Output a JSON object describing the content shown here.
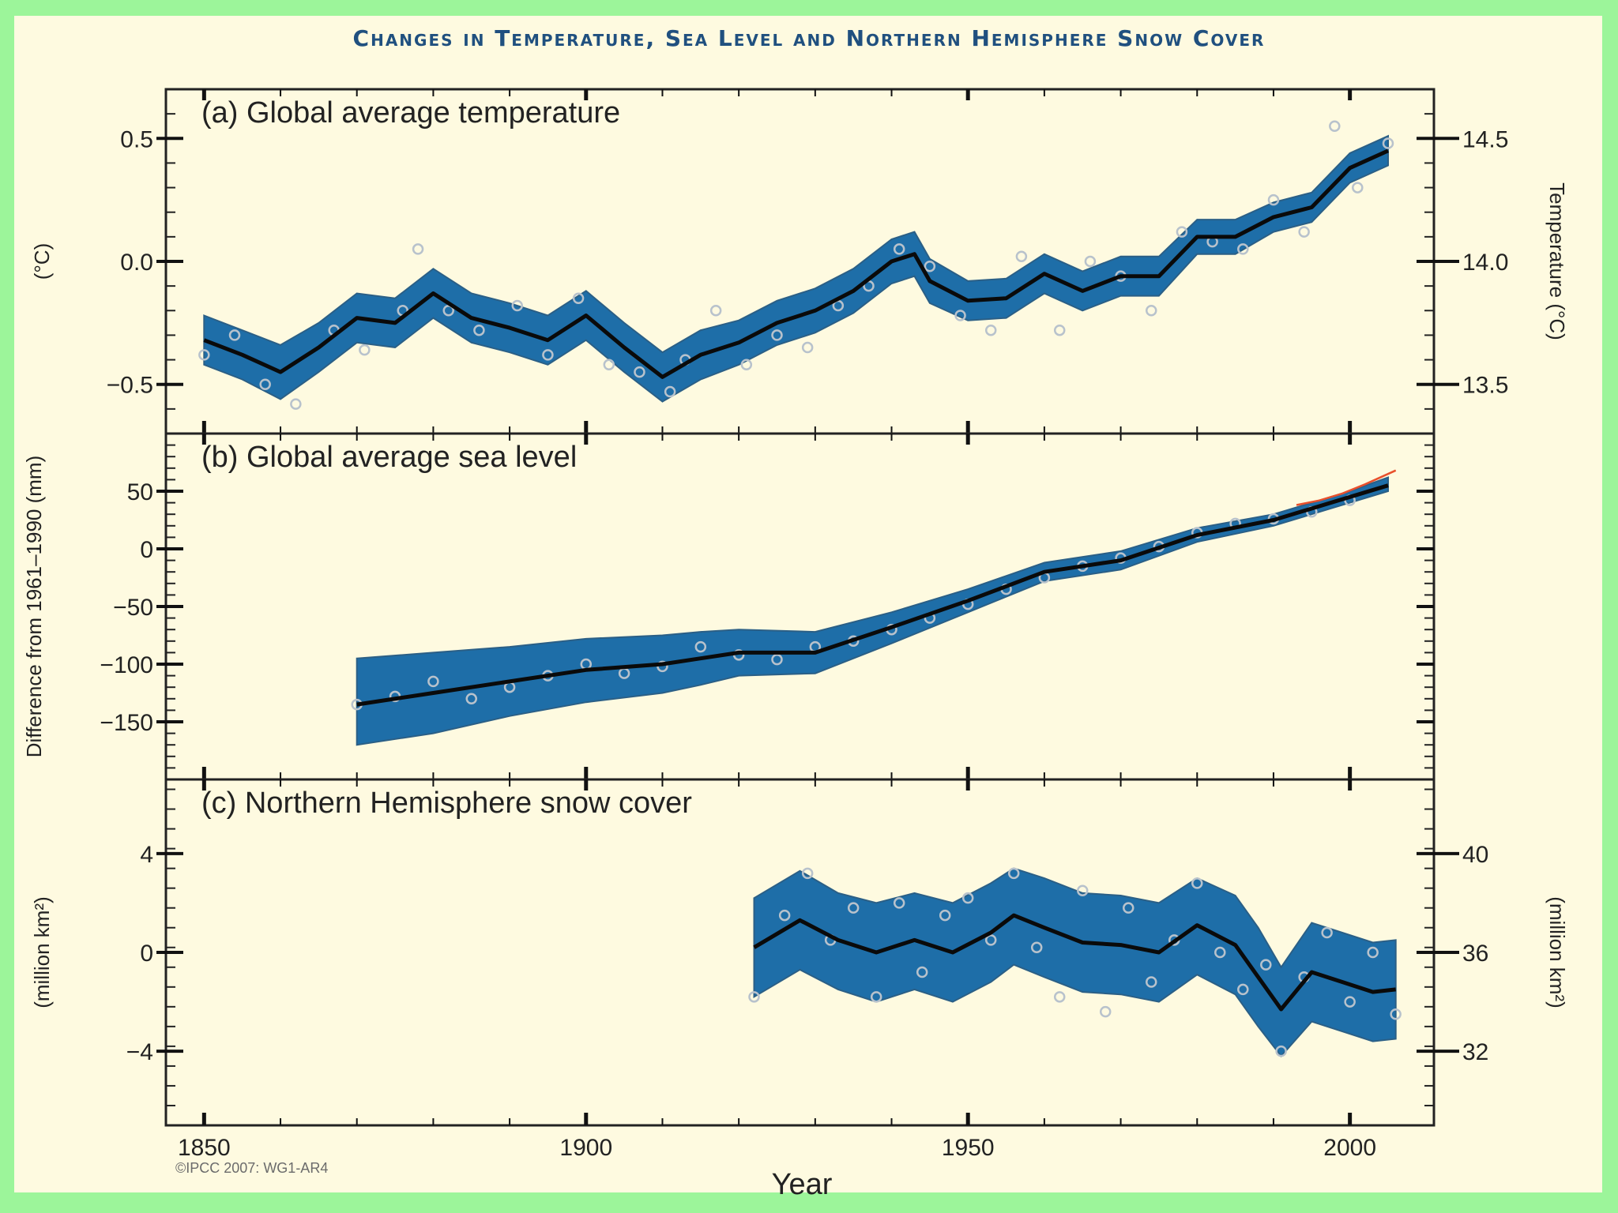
{
  "title": "Changes in Temperature, Sea Level and Northern Hemisphere Snow Cover",
  "credit": "©IPCC 2007: WG1-AR4",
  "colors": {
    "band": "#1e6ea8",
    "line": "#0a0a0a",
    "points": "#b8c2cc",
    "panel_bg": "#fefae0",
    "outer_bg": "#9cf59a",
    "title": "#20507f",
    "satellite": "#e8502c"
  },
  "chart_data": [
    {
      "type": "line",
      "title": "(a) Global average temperature",
      "xlabel": "Year",
      "ylabel": "(°C)",
      "ylabel_right": "Temperature (°C)",
      "xlim": [
        1845,
        2011
      ],
      "ylim": [
        -0.7,
        0.7
      ],
      "yticks": [
        0.5,
        0.0,
        -0.5
      ],
      "ytick_labels": [
        "0.5",
        "0.0",
        "−0.5"
      ],
      "yticks_right": [
        14.5,
        14.0,
        13.5
      ],
      "yticks_right_labels": [
        "14.5",
        "14.0",
        "13.5"
      ],
      "series": [
        {
          "name": "decadal smoothed",
          "x": [
            1850,
            1855,
            1860,
            1865,
            1870,
            1875,
            1880,
            1885,
            1890,
            1895,
            1900,
            1905,
            1910,
            1915,
            1920,
            1925,
            1930,
            1935,
            1940,
            1943,
            1945,
            1950,
            1955,
            1960,
            1965,
            1970,
            1975,
            1980,
            1985,
            1990,
            1995,
            2000,
            2005
          ],
          "values": [
            -0.32,
            -0.38,
            -0.45,
            -0.35,
            -0.23,
            -0.25,
            -0.13,
            -0.23,
            -0.27,
            -0.32,
            -0.22,
            -0.35,
            -0.47,
            -0.38,
            -0.33,
            -0.25,
            -0.2,
            -0.12,
            0.0,
            0.03,
            -0.08,
            -0.16,
            -0.15,
            -0.05,
            -0.12,
            -0.06,
            -0.06,
            0.1,
            0.1,
            0.18,
            0.22,
            0.38,
            0.45
          ]
        },
        {
          "name": "uncertainty",
          "x": [
            1850,
            1855,
            1860,
            1865,
            1870,
            1875,
            1880,
            1885,
            1890,
            1895,
            1900,
            1905,
            1910,
            1915,
            1920,
            1925,
            1930,
            1935,
            1940,
            1943,
            1945,
            1950,
            1955,
            1960,
            1965,
            1970,
            1975,
            1980,
            1985,
            1990,
            1995,
            2000,
            2005
          ],
          "upper": [
            -0.22,
            -0.28,
            -0.34,
            -0.25,
            -0.13,
            -0.15,
            -0.03,
            -0.13,
            -0.17,
            -0.22,
            -0.12,
            -0.25,
            -0.37,
            -0.28,
            -0.24,
            -0.16,
            -0.11,
            -0.03,
            0.09,
            0.12,
            0.01,
            -0.08,
            -0.07,
            0.03,
            -0.04,
            0.02,
            0.02,
            0.17,
            0.17,
            0.24,
            0.28,
            0.44,
            0.51
          ],
          "lower": [
            -0.42,
            -0.48,
            -0.56,
            -0.45,
            -0.33,
            -0.35,
            -0.23,
            -0.33,
            -0.37,
            -0.42,
            -0.32,
            -0.45,
            -0.57,
            -0.48,
            -0.42,
            -0.34,
            -0.29,
            -0.21,
            -0.09,
            -0.06,
            -0.17,
            -0.24,
            -0.23,
            -0.13,
            -0.2,
            -0.14,
            -0.14,
            0.03,
            0.03,
            0.12,
            0.16,
            0.32,
            0.39
          ]
        },
        {
          "name": "annual values",
          "x": [
            1850,
            1854,
            1858,
            1862,
            1867,
            1871,
            1876,
            1878,
            1882,
            1886,
            1891,
            1895,
            1899,
            1903,
            1907,
            1911,
            1913,
            1917,
            1921,
            1925,
            1929,
            1933,
            1937,
            1941,
            1945,
            1949,
            1953,
            1957,
            1962,
            1966,
            1970,
            1974,
            1978,
            1982,
            1986,
            1990,
            1994,
            1998,
            2001,
            2005
          ],
          "values": [
            -0.38,
            -0.3,
            -0.5,
            -0.58,
            -0.28,
            -0.36,
            -0.2,
            0.05,
            -0.2,
            -0.28,
            -0.18,
            -0.38,
            -0.15,
            -0.42,
            -0.45,
            -0.53,
            -0.4,
            -0.2,
            -0.42,
            -0.3,
            -0.35,
            -0.18,
            -0.1,
            0.05,
            -0.02,
            -0.22,
            -0.28,
            0.02,
            -0.28,
            0.0,
            -0.06,
            -0.2,
            0.12,
            0.08,
            0.05,
            0.25,
            0.12,
            0.55,
            0.3,
            0.48
          ]
        }
      ]
    },
    {
      "type": "line",
      "title": "(b) Global average sea level",
      "ylabel": "Difference from 1961–1990 (mm)",
      "xlim": [
        1845,
        2011
      ],
      "ylim": [
        -200,
        100
      ],
      "yticks": [
        50,
        0,
        -50,
        -100,
        -150
      ],
      "ytick_labels": [
        "50",
        "0",
        "−50",
        "−100",
        "−150"
      ],
      "series": [
        {
          "name": "decadal smoothed",
          "x": [
            1870,
            1880,
            1890,
            1900,
            1910,
            1915,
            1920,
            1930,
            1940,
            1950,
            1960,
            1970,
            1980,
            1990,
            2000,
            2005
          ],
          "values": [
            -135,
            -125,
            -115,
            -105,
            -100,
            -95,
            -90,
            -90,
            -68,
            -45,
            -20,
            -10,
            12,
            25,
            45,
            55
          ]
        },
        {
          "name": "uncertainty",
          "x": [
            1870,
            1880,
            1890,
            1900,
            1910,
            1915,
            1920,
            1930,
            1940,
            1950,
            1960,
            1970,
            1980,
            1990,
            2000,
            2005
          ],
          "upper": [
            -95,
            -90,
            -85,
            -78,
            -75,
            -72,
            -70,
            -72,
            -55,
            -35,
            -12,
            -2,
            18,
            30,
            50,
            62
          ],
          "lower": [
            -170,
            -160,
            -145,
            -133,
            -125,
            -118,
            -110,
            -108,
            -82,
            -55,
            -28,
            -18,
            6,
            20,
            40,
            50
          ]
        },
        {
          "name": "tide gauge values",
          "x": [
            1870,
            1875,
            1880,
            1885,
            1890,
            1895,
            1900,
            1905,
            1910,
            1915,
            1920,
            1925,
            1930,
            1935,
            1940,
            1945,
            1950,
            1955,
            1960,
            1965,
            1970,
            1975,
            1980,
            1985,
            1990,
            1995,
            2000
          ],
          "values": [
            -135,
            -128,
            -115,
            -130,
            -120,
            -110,
            -100,
            -108,
            -102,
            -85,
            -92,
            -96,
            -85,
            -80,
            -70,
            -60,
            -48,
            -35,
            -25,
            -15,
            -8,
            2,
            14,
            22,
            26,
            32,
            42
          ]
        },
        {
          "name": "satellite altimetry",
          "x": [
            1993,
            1996,
            1999,
            2002,
            2006
          ],
          "values": [
            38,
            42,
            48,
            56,
            68
          ]
        }
      ]
    },
    {
      "type": "line",
      "title": "(c) Northern Hemisphere snow cover",
      "ylabel": "(million km²)",
      "ylabel_right": "(million km²)",
      "xlim": [
        1845,
        2011
      ],
      "ylim": [
        -7,
        7
      ],
      "yticks": [
        4,
        0,
        -4
      ],
      "ytick_labels": [
        "4",
        "0",
        "−4"
      ],
      "yticks_right": [
        40,
        36,
        32
      ],
      "yticks_right_labels": [
        "40",
        "36",
        "32"
      ],
      "xticks": [
        1850,
        1900,
        1950,
        2000
      ],
      "xtick_labels": [
        "1850",
        "1900",
        "1950",
        "2000"
      ],
      "series": [
        {
          "name": "decadal smoothed",
          "x": [
            1922,
            1928,
            1933,
            1938,
            1943,
            1948,
            1953,
            1956,
            1960,
            1965,
            1970,
            1975,
            1980,
            1985,
            1988,
            1991,
            1995,
            1999,
            2003,
            2006
          ],
          "values": [
            0.2,
            1.3,
            0.5,
            0.0,
            0.5,
            0.0,
            0.8,
            1.5,
            1.0,
            0.4,
            0.3,
            0.0,
            1.1,
            0.3,
            -1.0,
            -2.3,
            -0.8,
            -1.2,
            -1.6,
            -1.5
          ]
        },
        {
          "name": "uncertainty",
          "x": [
            1922,
            1928,
            1933,
            1938,
            1943,
            1948,
            1953,
            1956,
            1960,
            1965,
            1970,
            1975,
            1980,
            1985,
            1988,
            1991,
            1995,
            1999,
            2003,
            2006
          ],
          "upper": [
            2.2,
            3.3,
            2.4,
            2.0,
            2.4,
            2.0,
            2.8,
            3.4,
            3.0,
            2.4,
            2.3,
            2.0,
            3.0,
            2.3,
            1.0,
            -0.6,
            1.2,
            0.8,
            0.4,
            0.5
          ],
          "lower": [
            -1.8,
            -0.7,
            -1.5,
            -2.0,
            -1.5,
            -2.0,
            -1.2,
            -0.5,
            -1.0,
            -1.6,
            -1.7,
            -2.0,
            -0.9,
            -1.7,
            -3.0,
            -4.2,
            -2.8,
            -3.2,
            -3.6,
            -3.5
          ]
        },
        {
          "name": "annual values",
          "x": [
            1922,
            1926,
            1929,
            1932,
            1935,
            1938,
            1941,
            1944,
            1947,
            1950,
            1953,
            1956,
            1959,
            1962,
            1965,
            1968,
            1971,
            1974,
            1977,
            1980,
            1983,
            1986,
            1989,
            1991,
            1994,
            1997,
            2000,
            2003,
            2006
          ],
          "values": [
            -1.8,
            1.5,
            3.2,
            0.5,
            1.8,
            -1.8,
            2.0,
            -0.8,
            1.5,
            2.2,
            0.5,
            3.2,
            0.2,
            -1.8,
            2.5,
            -2.4,
            1.8,
            -1.2,
            0.5,
            2.8,
            0.0,
            -1.5,
            -0.5,
            -4.0,
            -1.0,
            0.8,
            -2.0,
            0.0,
            -2.5
          ]
        }
      ]
    }
  ]
}
